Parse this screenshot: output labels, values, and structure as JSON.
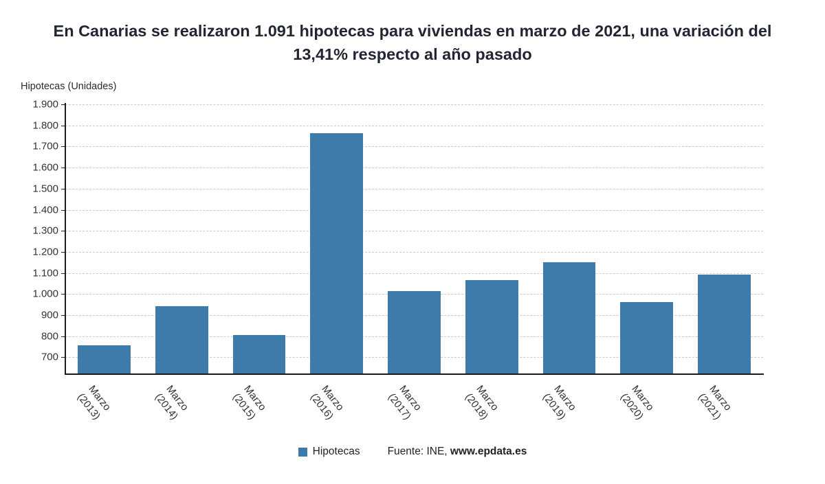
{
  "title": "En Canarias se realizaron 1.091 hipotecas para viviendas en marzo de 2021, una variación del 13,41% respecto al año pasado",
  "axis_title": "Hipotecas (Unidades)",
  "legend": {
    "label": "Hipotecas",
    "color": "#3d7bab"
  },
  "source": {
    "prefix": "Fuente: INE, ",
    "site": "www.epdata.es"
  },
  "chart_data": {
    "type": "bar",
    "title": "En Canarias se realizaron 1.091 hipotecas para viviendas en marzo de 2021, una variación del 13,41% respecto al año pasado",
    "categories": [
      "Marzo (2013)",
      "Marzo (2014)",
      "Marzo (2015)",
      "Marzo (2016)",
      "Marzo (2017)",
      "Marzo (2018)",
      "Marzo (2019)",
      "Marzo (2020)",
      "Marzo (2021)"
    ],
    "values": [
      758,
      941,
      806,
      1762,
      1014,
      1067,
      1150,
      962,
      1091
    ],
    "series_name": "Hipotecas",
    "xlabel": "",
    "ylabel": "Hipotecas (Unidades)",
    "ylim": [
      620,
      1900
    ],
    "yticks": [
      700,
      800,
      900,
      1000,
      1100,
      1200,
      1300,
      1400,
      1500,
      1600,
      1700,
      1800,
      1900
    ],
    "grid": "horizontal-dashed",
    "legend_position": "bottom",
    "bar_color": "#3d7bab"
  }
}
